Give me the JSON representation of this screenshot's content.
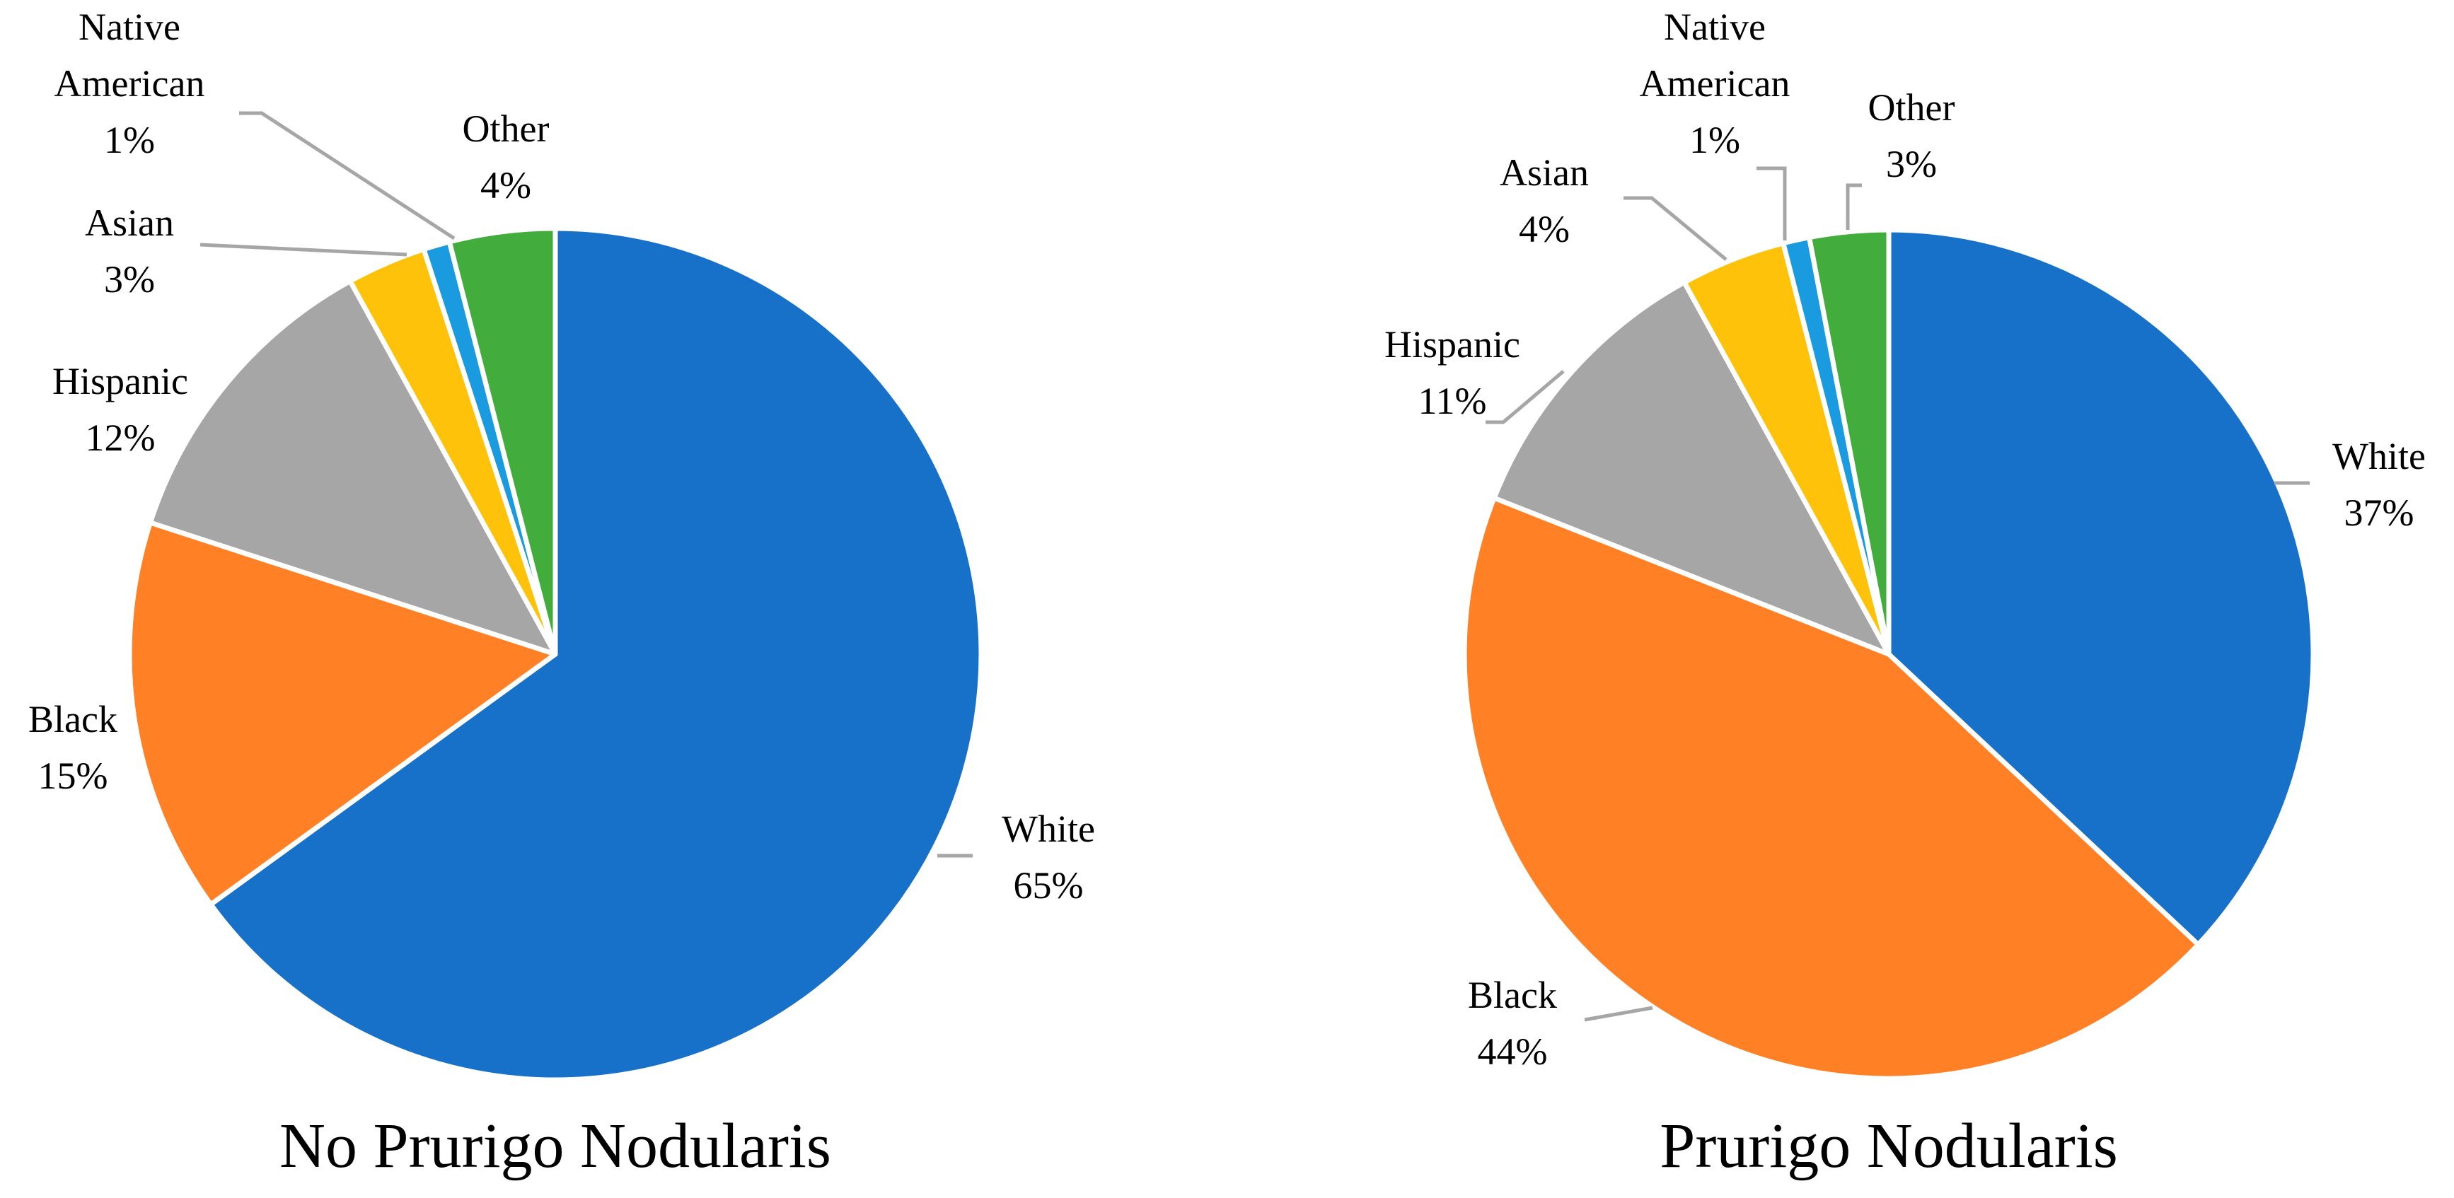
{
  "chart_data": [
    {
      "type": "pie",
      "title": "No Prurigo Nodularis",
      "start_angle_deg": 0,
      "direction": "clockwise",
      "slices": [
        {
          "label": "White",
          "value": 65,
          "value_label": "65%",
          "color": "#1771c9"
        },
        {
          "label": "Black",
          "value": 15,
          "value_label": "15%",
          "color": "#ff8025"
        },
        {
          "label": "Hispanic",
          "value": 12,
          "value_label": "12%",
          "color": "#a6a6a6"
        },
        {
          "label": "Asian",
          "value": 3,
          "value_label": "3%",
          "color": "#ffc20a"
        },
        {
          "label": "Native American",
          "label_lines": [
            "Native",
            "American"
          ],
          "value": 1,
          "value_label": "1%",
          "color": "#1a9be0"
        },
        {
          "label": "Other",
          "value": 4,
          "value_label": "4%",
          "color": "#42ad3d"
        }
      ]
    },
    {
      "type": "pie",
      "title": "Prurigo Nodularis",
      "start_angle_deg": 0,
      "direction": "clockwise",
      "slices": [
        {
          "label": "White",
          "value": 37,
          "value_label": "37%",
          "color": "#1771c9"
        },
        {
          "label": "Black",
          "value": 44,
          "value_label": "44%",
          "color": "#ff8025"
        },
        {
          "label": "Hispanic",
          "value": 11,
          "value_label": "11%",
          "color": "#a6a6a6"
        },
        {
          "label": "Asian",
          "value": 4,
          "value_label": "4%",
          "color": "#ffc20a"
        },
        {
          "label": "Native American",
          "label_lines": [
            "Native",
            "American"
          ],
          "value": 1,
          "value_label": "1%",
          "color": "#1a9be0"
        },
        {
          "label": "Other",
          "value": 3,
          "value_label": "3%",
          "color": "#42ad3d"
        }
      ]
    }
  ]
}
